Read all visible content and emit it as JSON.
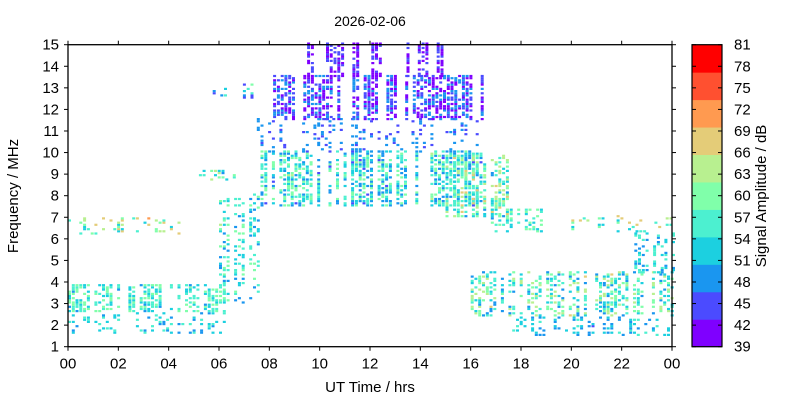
{
  "chart_data": {
    "type": "heatmap",
    "title": "2026-02-06",
    "xlabel": "UT Time / hrs",
    "ylabel": "Frequency / MHz",
    "xlim": [
      0,
      24
    ],
    "ylim": [
      1,
      15
    ],
    "xticks": [
      "00",
      "02",
      "04",
      "06",
      "08",
      "10",
      "12",
      "14",
      "16",
      "18",
      "20",
      "22",
      "00"
    ],
    "yticks": [
      1,
      2,
      3,
      4,
      5,
      6,
      7,
      8,
      9,
      10,
      11,
      12,
      13,
      14,
      15
    ],
    "colorbar": {
      "label": "Signal Amplitude / dB",
      "range": [
        39,
        81
      ],
      "ticks": [
        39,
        42,
        45,
        48,
        51,
        54,
        57,
        60,
        63,
        66,
        69,
        72,
        75,
        78,
        81
      ],
      "colors": [
        "#7f00ff",
        "#4b4bff",
        "#1a96f0",
        "#1cd0e0",
        "#4cf0d0",
        "#80ffaa",
        "#b8f090",
        "#e4cc78",
        "#ff9a50",
        "#ff5030",
        "#ff0000"
      ]
    },
    "grid": false,
    "regions": [
      {
        "t": [
          0,
          6.3
        ],
        "f": [
          1.6,
          2.6
        ],
        "amp": [
          48,
          58
        ],
        "density": 0.28
      },
      {
        "t": [
          0,
          6.3
        ],
        "f": [
          2.6,
          3.9
        ],
        "amp": [
          50,
          62
        ],
        "density": 0.55
      },
      {
        "t": [
          0,
          4.6
        ],
        "f": [
          6.2,
          6.9
        ],
        "amp": [
          52,
          70
        ],
        "density": 0.18
      },
      {
        "t": [
          5.2,
          7
        ],
        "f": [
          8.7,
          9.1
        ],
        "amp": [
          50,
          64
        ],
        "density": 0.4
      },
      {
        "t": [
          5.6,
          7.4
        ],
        "f": [
          12.4,
          13.1
        ],
        "amp": [
          44,
          60
        ],
        "density": 0.25
      },
      {
        "t": [
          6,
          7.6
        ],
        "f": [
          3,
          8
        ],
        "amp": [
          48,
          62
        ],
        "density": 0.3
      },
      {
        "t": [
          7.5,
          16.5
        ],
        "f": [
          7.5,
          10
        ],
        "amp": [
          46,
          62
        ],
        "density": 0.6
      },
      {
        "t": [
          7.5,
          16.5
        ],
        "f": [
          10,
          11.5
        ],
        "amp": [
          44,
          50
        ],
        "density": 0.22
      },
      {
        "t": [
          8,
          16.5
        ],
        "f": [
          11.5,
          13.5
        ],
        "amp": [
          39,
          50
        ],
        "density": 0.65
      },
      {
        "t": [
          9.5,
          12.4
        ],
        "f": [
          13.5,
          15
        ],
        "amp": [
          39,
          46
        ],
        "density": 0.6
      },
      {
        "t": [
          13,
          15
        ],
        "f": [
          13.5,
          15
        ],
        "amp": [
          39,
          46
        ],
        "density": 0.6
      },
      {
        "t": [
          15,
          17.5
        ],
        "f": [
          7,
          9.8
        ],
        "amp": [
          50,
          68
        ],
        "density": 0.5
      },
      {
        "t": [
          16.5,
          18.8
        ],
        "f": [
          6.3,
          7.3
        ],
        "amp": [
          50,
          62
        ],
        "density": 0.45
      },
      {
        "t": [
          16,
          24
        ],
        "f": [
          2.4,
          4.4
        ],
        "amp": [
          48,
          66
        ],
        "density": 0.45
      },
      {
        "t": [
          17.5,
          24
        ],
        "f": [
          1.5,
          2.4
        ],
        "amp": [
          46,
          56
        ],
        "density": 0.3
      },
      {
        "t": [
          20,
          24
        ],
        "f": [
          6.3,
          7
        ],
        "amp": [
          52,
          68
        ],
        "density": 0.2
      },
      {
        "t": [
          22.5,
          24
        ],
        "f": [
          4.4,
          6.2
        ],
        "amp": [
          48,
          58
        ],
        "density": 0.35
      }
    ]
  }
}
